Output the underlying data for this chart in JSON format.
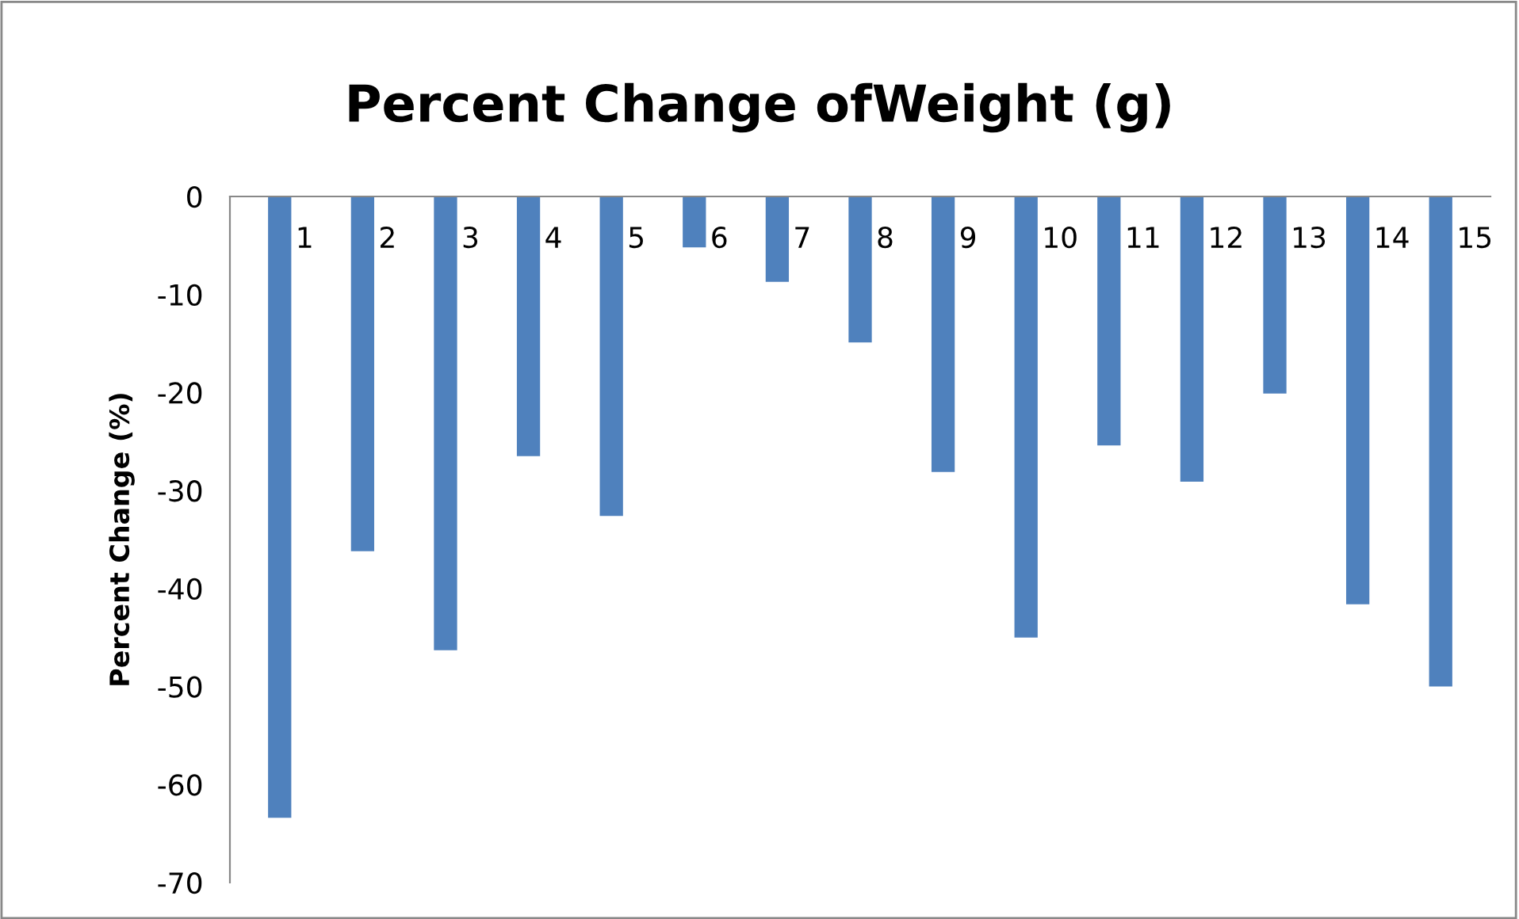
{
  "chart_data": {
    "type": "bar",
    "title": "Percent Change ofWeight (g)",
    "ylabel": "Percent Change (%)",
    "categories": [
      "1",
      "2",
      "3",
      "4",
      "5",
      "6",
      "7",
      "8",
      "9",
      "10",
      "11",
      "12",
      "13",
      "14",
      "15"
    ],
    "values": [
      -63.4,
      -36.2,
      -46.3,
      -26.5,
      -32.6,
      -5.2,
      -8.7,
      -14.9,
      -28.1,
      -45.0,
      -25.4,
      -29.1,
      -20.1,
      -41.6,
      -50.0
    ],
    "color": "#4f81bd",
    "ylim": [
      -70,
      0
    ],
    "yticks": [
      -70,
      -60,
      -50,
      -40,
      -30,
      -20,
      -10,
      0
    ],
    "grid": false,
    "legend": false
  }
}
